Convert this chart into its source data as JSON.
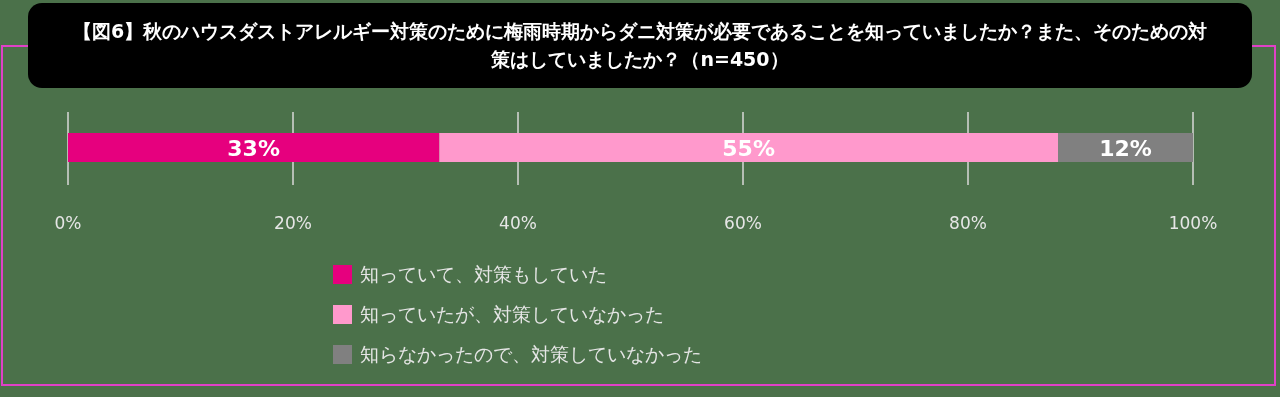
{
  "chart_data": {
    "type": "bar",
    "orientation": "horizontal",
    "stacked": true,
    "title": "【図6】秋のハウスダストアレルギー対策のために梅雨時期からダニ対策が必要であることを知っていましたか？また、そのための対策はしていましたか？（n=450）",
    "categories": [
      null
    ],
    "series": [
      {
        "name": "知っていて、対策もしていた",
        "color": "#e6007e",
        "values": [
          33
        ],
        "value_labels": [
          "33%"
        ]
      },
      {
        "name": "知っていたが、対策していなかった",
        "color": "#ff99cc",
        "values": [
          55
        ],
        "value_labels": [
          "55%"
        ]
      },
      {
        "name": "知らなかったので、対策していなかった",
        "color": "#808080",
        "values": [
          12
        ],
        "value_labels": [
          "12%"
        ]
      }
    ],
    "xlim": [
      0,
      100
    ],
    "xticks": [
      {
        "value": 0,
        "label": "0%"
      },
      {
        "value": 20,
        "label": "20%"
      },
      {
        "value": 40,
        "label": "40%"
      },
      {
        "value": 60,
        "label": "60%"
      },
      {
        "value": 80,
        "label": "80%"
      },
      {
        "value": 100,
        "label": "100%"
      }
    ],
    "grid": "x",
    "legend": "bottom"
  }
}
